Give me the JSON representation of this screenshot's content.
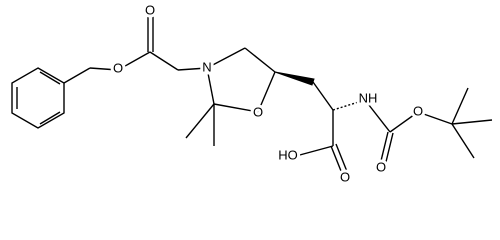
{
  "atom_labels": [
    "O",
    "N",
    "O",
    "O",
    "HO",
    "O",
    "NH",
    "O",
    "O"
  ]
}
